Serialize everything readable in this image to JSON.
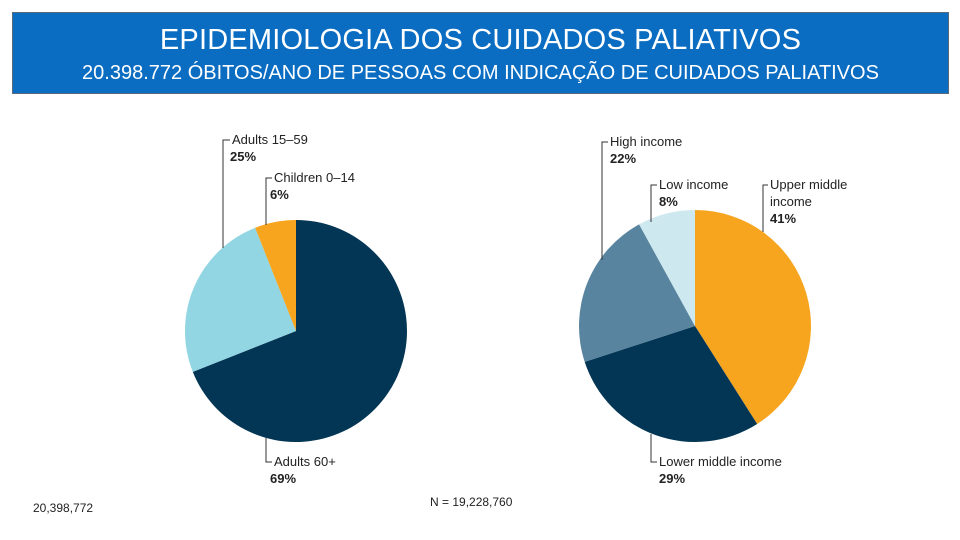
{
  "header": {
    "title": "EPIDEMIOLOGIA DOS CUIDADOS PALIATIVOS",
    "subtitle": "20.398.772 ÓBITOS/ANO DE PESSOAS COM INDICAÇÃO DE CUIDADOS PALIATIVOS"
  },
  "chart_data": [
    {
      "type": "pie",
      "title": "",
      "total_note": "20,398,772",
      "slices": [
        {
          "label": "Adults 60+",
          "value": 69,
          "display": "69%",
          "color": "#033654"
        },
        {
          "label": "Adults 15–59",
          "value": 25,
          "display": "25%",
          "color": "#92d5e3"
        },
        {
          "label": "Children 0–14",
          "value": 6,
          "display": "6%",
          "color": "#f7a51e"
        }
      ]
    },
    {
      "type": "pie",
      "title": "",
      "total_note": "N = 19,228,760",
      "slices": [
        {
          "label": "Upper middle income",
          "label_lines": [
            "Upper middle",
            "income"
          ],
          "value": 41,
          "display": "41%",
          "color": "#f7a51e"
        },
        {
          "label": "Lower middle income",
          "value": 29,
          "display": "29%",
          "color": "#033654"
        },
        {
          "label": "High income",
          "value": 22,
          "display": "22%",
          "color": "#58849f"
        },
        {
          "label": "Low income",
          "value": 8,
          "display": "8%",
          "color": "#cde9ef"
        }
      ]
    }
  ]
}
